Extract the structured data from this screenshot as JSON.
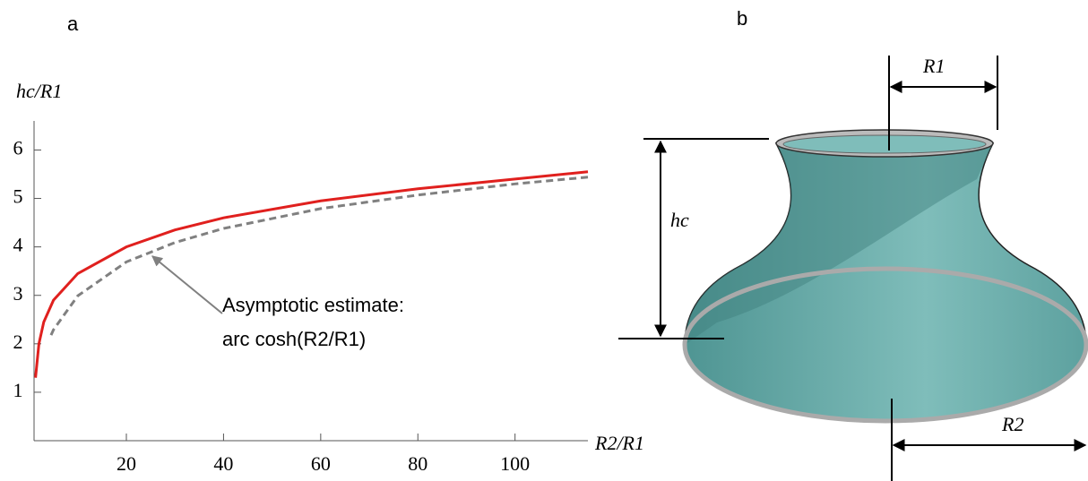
{
  "panels": [
    "a",
    "b"
  ],
  "chart_data": {
    "type": "line",
    "ylabel": "hc/R1",
    "xlabel": "R2/R1",
    "xlim": [
      1,
      115
    ],
    "ylim": [
      0,
      6.6
    ],
    "xticks": [
      20,
      40,
      60,
      80,
      100
    ],
    "yticks": [
      1,
      2,
      3,
      4,
      5,
      6
    ],
    "series": [
      {
        "color": "#e0201e",
        "dash": "solid",
        "x": [
          1.3,
          2,
          3,
          5,
          10,
          20,
          30,
          40,
          60,
          80,
          100,
          115
        ],
        "values": [
          1.3,
          2.0,
          2.45,
          2.9,
          3.45,
          4.0,
          4.35,
          4.6,
          4.95,
          5.2,
          5.4,
          5.55
        ]
      },
      {
        "color": "#808080",
        "dash": "dashed",
        "x": [
          4.5,
          5,
          10,
          20,
          30,
          40,
          60,
          80,
          100,
          115
        ],
        "values": [
          2.18,
          2.29,
          2.99,
          3.69,
          4.09,
          4.38,
          4.79,
          5.07,
          5.3,
          5.44
        ]
      }
    ],
    "annotation": [
      "Asymptotic estimate:",
      "arc cosh(R2/R1)"
    ]
  },
  "diagram": {
    "labels": {
      "r1": "R1",
      "hc": "hc",
      "r2": "R2"
    }
  }
}
